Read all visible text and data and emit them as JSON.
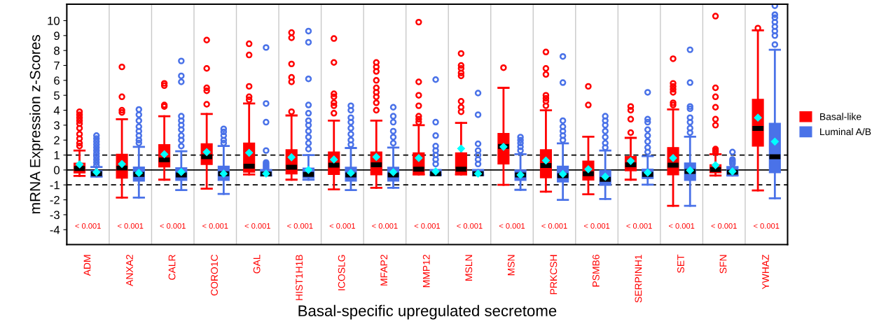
{
  "chart_data": {
    "type": "box",
    "xlabel": "Basal-specific upregulated secretome",
    "ylabel": "mRNA Expression z-Scores",
    "categories": [
      "ADM",
      "ANXA2",
      "CALR",
      "CORO1C",
      "GAL",
      "HIST1H1B",
      "ICOSLG",
      "MFAP2",
      "MMP12",
      "MSLN",
      "MSN",
      "PRKCSH",
      "PSMB6",
      "SERPINH1",
      "SET",
      "SFN",
      "YWHAZ"
    ],
    "ylim": [
      -5,
      11.1
    ],
    "yticks": [
      -4,
      -3,
      -2,
      -1,
      0,
      1,
      2,
      3,
      4,
      5,
      6,
      7,
      8,
      9,
      10
    ],
    "grid": "x",
    "legend": "right",
    "marker": "circle",
    "ref_lines": [
      {
        "axis": "y",
        "value": 0,
        "line_style": "solid"
      },
      {
        "axis": "y",
        "value": 1,
        "line_style": "dashed"
      },
      {
        "axis": "y",
        "value": -1,
        "line_style": "dashed"
      }
    ],
    "annotations": [
      "< 0.001",
      "< 0.001",
      "< 0.001",
      "< 0.001",
      "< 0.001",
      "< 0.001",
      "< 0.001",
      "< 0.001",
      "< 0.001",
      "< 0.001",
      "< 0.001",
      "< 0.001",
      "< 0.001",
      "< 0.001",
      "< 0.001",
      "< 0.001",
      "< 0.001"
    ],
    "series": [
      {
        "name": "Basal-like",
        "color": "#ff0000",
        "boxes": [
          {
            "low": -0.4,
            "q1": -0.2,
            "median": 0.1,
            "q3": 0.45,
            "high": 1.3,
            "mean": 0.37,
            "outliers": [
              3.9,
              3.7,
              3.5,
              3.3,
              3.1,
              2.8,
              2.4,
              2.1,
              1.8,
              1.6
            ]
          },
          {
            "low": -1.85,
            "q1": -0.55,
            "median": 0.13,
            "q3": 1.05,
            "high": 3.4,
            "mean": 0.4,
            "outliers": [
              6.9,
              4.9,
              4.0,
              3.85
            ]
          },
          {
            "low": -0.65,
            "q1": 0.2,
            "median": 0.68,
            "q3": 1.7,
            "high": 3.6,
            "mean": 1.05,
            "outliers": [
              5.8,
              5.65,
              4.35,
              4.25
            ]
          },
          {
            "low": -1.25,
            "q1": 0.37,
            "median": 0.88,
            "q3": 1.75,
            "high": 3.75,
            "mean": 1.2,
            "outliers": [
              8.7,
              6.8,
              5.5,
              5.3,
              4.4
            ]
          },
          {
            "low": -0.3,
            "q1": -0.15,
            "median": 0.25,
            "q3": 1.8,
            "high": 4.45,
            "mean": 1.15,
            "outliers": [
              8.45,
              7.7,
              5.6,
              4.9,
              4.7
            ]
          },
          {
            "low": -0.65,
            "q1": -0.27,
            "median": 0.18,
            "q3": 1.35,
            "high": 3.65,
            "mean": 0.85,
            "outliers": [
              9.2,
              8.85,
              7.1,
              6.2,
              5.9,
              3.9
            ]
          },
          {
            "low": -1.3,
            "q1": -0.3,
            "median": 0.32,
            "q3": 1.2,
            "high": 3.3,
            "mean": 0.7,
            "outliers": [
              8.8,
              7.2,
              5.1,
              4.9,
              4.5,
              4.3,
              3.8
            ]
          },
          {
            "low": -1.2,
            "q1": -0.33,
            "median": 0.35,
            "q3": 1.2,
            "high": 3.3,
            "mean": 0.87,
            "outliers": [
              7.2,
              6.9,
              6.6,
              6.0,
              5.5,
              5.2,
              4.9,
              4.5,
              4.0
            ]
          },
          {
            "low": -0.3,
            "q1": -0.3,
            "median": 0.05,
            "q3": 1.15,
            "high": 3.0,
            "mean": 0.8,
            "outliers": [
              9.9,
              5.9,
              5.0,
              4.3,
              3.6,
              3.4,
              3.2
            ]
          },
          {
            "low": -0.3,
            "q1": -0.3,
            "median": 0.05,
            "q3": 1.15,
            "high": 3.15,
            "mean": 1.43,
            "outliers": [
              7.8,
              7.0,
              6.8,
              6.5,
              6.3,
              4.6,
              4.2,
              3.9
            ]
          },
          {
            "low": -1.0,
            "q1": 0.4,
            "median": 1.58,
            "q3": 2.45,
            "high": 5.5,
            "mean": 1.55,
            "outliers": [
              6.85
            ]
          },
          {
            "low": -1.45,
            "q1": -0.52,
            "median": 0.3,
            "q3": 1.35,
            "high": 4.0,
            "mean": 0.63,
            "outliers": [
              7.9,
              6.8,
              6.4,
              5.0,
              4.8,
              4.6,
              4.3
            ]
          },
          {
            "low": -1.63,
            "q1": -0.68,
            "median": -0.25,
            "q3": 0.6,
            "high": 2.23,
            "mean": 0.05,
            "outliers": [
              5.6,
              4.35
            ]
          },
          {
            "low": -0.65,
            "q1": -0.05,
            "median": 0.35,
            "q3": 0.9,
            "high": 2.15,
            "mean": 0.6,
            "outliers": [
              4.25,
              4.0,
              3.4,
              2.5
            ]
          },
          {
            "low": -2.4,
            "q1": -0.33,
            "median": 0.32,
            "q3": 1.5,
            "high": 4.05,
            "mean": 0.8,
            "outliers": [
              7.45,
              5.8,
              5.6,
              5.4,
              5.2,
              4.5,
              4.35
            ]
          },
          {
            "low": -0.37,
            "q1": -0.18,
            "median": 0.03,
            "q3": 0.35,
            "high": 1.05,
            "mean": 0.32,
            "outliers": [
              10.3,
              5.5,
              4.9,
              4.2,
              3.4,
              3.0,
              1.4,
              1.3,
              1.2
            ]
          },
          {
            "low": -1.37,
            "q1": 1.6,
            "median": 2.78,
            "q3": 4.73,
            "high": 9.35,
            "mean": 3.5,
            "outliers": [
              9.5
            ]
          }
        ]
      },
      {
        "name": "Luminal A/B",
        "color": "#4a72e8",
        "boxes": [
          {
            "low": -0.45,
            "q1": -0.45,
            "median": -0.25,
            "q3": -0.05,
            "high": 0.2,
            "mean": -0.15,
            "outliers": [
              2.3,
              2.1,
              1.9,
              1.7,
              1.5,
              1.3,
              1.1,
              0.9,
              0.7,
              0.5,
              0.3
            ]
          },
          {
            "low": -1.85,
            "q1": -0.75,
            "median": -0.3,
            "q3": 0.2,
            "high": 1.55,
            "mean": -0.2,
            "outliers": [
              4.05,
              3.7,
              3.3,
              2.9,
              2.6,
              2.3,
              2.0,
              1.8
            ]
          },
          {
            "low": -1.35,
            "q1": -0.7,
            "median": -0.33,
            "q3": 0.15,
            "high": 1.25,
            "mean": -0.14,
            "outliers": [
              7.3,
              6.3,
              5.9,
              3.6,
              3.3,
              3.0,
              2.7,
              2.3,
              2.0,
              1.6
            ]
          },
          {
            "low": -1.6,
            "q1": -0.7,
            "median": -0.25,
            "q3": 0.25,
            "high": 1.6,
            "mean": -0.25,
            "outliers": [
              2.75,
              2.55,
              2.3,
              2.0,
              1.8
            ]
          },
          {
            "low": -0.38,
            "q1": -0.38,
            "median": -0.27,
            "q3": -0.1,
            "high": 0.0,
            "mean": -0.25,
            "outliers": [
              8.2,
              4.45,
              3.2,
              1.3,
              0.5,
              0.4,
              0.3,
              0.2,
              0.1
            ]
          },
          {
            "low": -0.65,
            "q1": -0.52,
            "median": -0.3,
            "q3": 0.13,
            "high": 1.0,
            "mean": 0.0,
            "outliers": [
              9.3,
              8.55,
              6.1,
              4.35,
              3.8,
              3.3,
              3.0,
              2.6,
              2.2,
              1.8,
              1.4
            ]
          },
          {
            "low": -1.35,
            "q1": -0.75,
            "median": -0.33,
            "q3": 0.18,
            "high": 1.47,
            "mean": -0.2,
            "outliers": [
              4.3,
              4.0,
              3.5,
              3.2,
              2.8,
              2.4,
              2.0,
              1.7
            ]
          },
          {
            "low": -1.2,
            "q1": -0.75,
            "median": -0.33,
            "q3": 0.18,
            "high": 1.5,
            "mean": -0.15,
            "outliers": [
              4.2,
              3.6,
              3.2,
              2.6,
              2.2,
              1.8
            ]
          },
          {
            "low": -0.35,
            "q1": -0.35,
            "median": -0.25,
            "q3": -0.1,
            "high": 0.0,
            "mean": -0.1,
            "outliers": [
              6.05,
              3.2,
              2.3,
              1.6,
              1.3,
              1.0,
              0.7,
              0.4
            ]
          },
          {
            "low": -0.35,
            "q1": -0.35,
            "median": -0.25,
            "q3": -0.1,
            "high": 0.0,
            "mean": -0.25,
            "outliers": [
              5.15,
              3.7,
              1.75,
              1.3,
              1.0,
              0.7,
              0.4
            ]
          },
          {
            "low": -1.33,
            "q1": -0.7,
            "median": -0.33,
            "q3": 0.0,
            "high": 1.05,
            "mean": -0.33,
            "outliers": [
              2.2,
              2.0,
              1.8,
              1.55,
              1.3
            ]
          },
          {
            "low": -2.0,
            "q1": -0.8,
            "median": -0.38,
            "q3": 0.25,
            "high": 1.78,
            "mean": -0.27,
            "outliers": [
              7.6,
              5.85,
              3.3,
              2.9,
              2.6,
              2.3,
              2.0
            ]
          },
          {
            "low": -1.95,
            "q1": -1.03,
            "median": -0.63,
            "q3": -0.03,
            "high": 1.3,
            "mean": -0.45,
            "outliers": [
              3.6,
              3.3,
              3.0,
              2.6,
              2.2,
              1.8,
              1.5
            ]
          },
          {
            "low": -0.98,
            "q1": -0.57,
            "median": -0.3,
            "q3": 0.05,
            "high": 0.93,
            "mean": -0.18,
            "outliers": [
              5.2,
              3.4,
              3.2,
              2.7,
              2.3,
              1.9,
              1.5,
              1.2
            ]
          },
          {
            "low": -2.4,
            "q1": -0.7,
            "median": -0.1,
            "q3": 0.47,
            "high": 2.23,
            "mean": -0.03,
            "outliers": [
              8.05,
              5.85,
              4.25,
              4.1,
              3.5,
              3.2,
              2.8,
              2.5
            ]
          },
          {
            "low": -0.37,
            "q1": -0.37,
            "median": -0.15,
            "q3": 0.13,
            "high": 0.2,
            "mean": -0.1,
            "outliers": [
              1.2,
              0.7,
              0.6,
              0.5,
              0.4
            ]
          },
          {
            "low": -1.9,
            "q1": -0.18,
            "median": 0.88,
            "q3": 3.12,
            "high": 8.05,
            "mean": 1.9,
            "outliers": [
              11.0,
              10.4,
              10.2,
              9.9,
              9.6,
              9.3,
              9.0,
              8.4
            ]
          }
        ]
      }
    ]
  }
}
